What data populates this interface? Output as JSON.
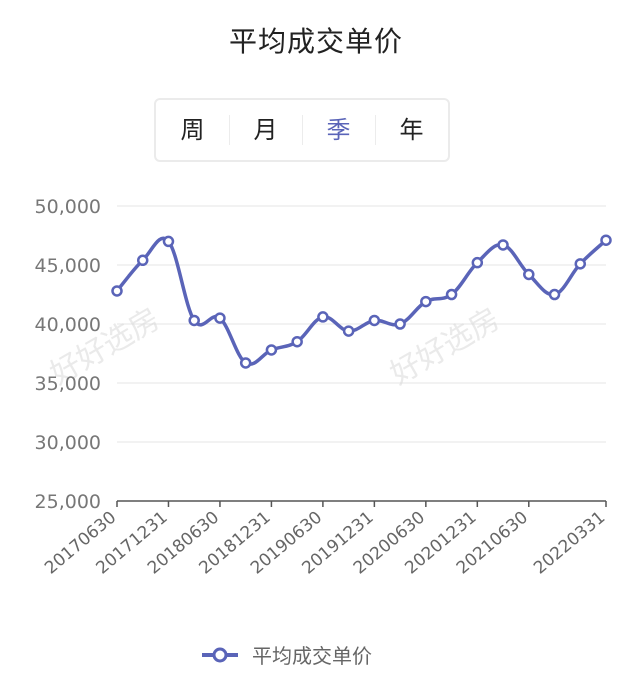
{
  "chart_data": {
    "type": "line",
    "title": "平均成交单价",
    "x": [
      "20170630",
      "20170930",
      "20171231",
      "20180331",
      "20180630",
      "20180930",
      "20181231",
      "20190331",
      "20190630",
      "20190930",
      "20191231",
      "20200331",
      "20200630",
      "20200930",
      "20201231",
      "20210331",
      "20210630",
      "20210930",
      "20211231",
      "20220331"
    ],
    "x_tick_labels": [
      "20170630",
      "20171231",
      "20180630",
      "20181231",
      "20190630",
      "20191231",
      "20200630",
      "20201231",
      "20210630",
      "20220331"
    ],
    "series": [
      {
        "name": "平均成交单价",
        "values": [
          42800,
          45400,
          47000,
          40300,
          40500,
          36700,
          37800,
          38500,
          40600,
          39400,
          40300,
          40000,
          41900,
          42500,
          45200,
          46700,
          44200,
          42500,
          45100,
          47100
        ]
      }
    ],
    "ylim": [
      25000,
      50000
    ],
    "y_ticks": [
      "25,000",
      "30,000",
      "35,000",
      "40,000",
      "45,000",
      "50,000"
    ],
    "grid": true,
    "legend": "bottom",
    "line_color": "#5a64b8"
  },
  "tabs": {
    "items": [
      "周",
      "月",
      "季",
      "年"
    ],
    "active": "季"
  },
  "watermark": "好好选房"
}
